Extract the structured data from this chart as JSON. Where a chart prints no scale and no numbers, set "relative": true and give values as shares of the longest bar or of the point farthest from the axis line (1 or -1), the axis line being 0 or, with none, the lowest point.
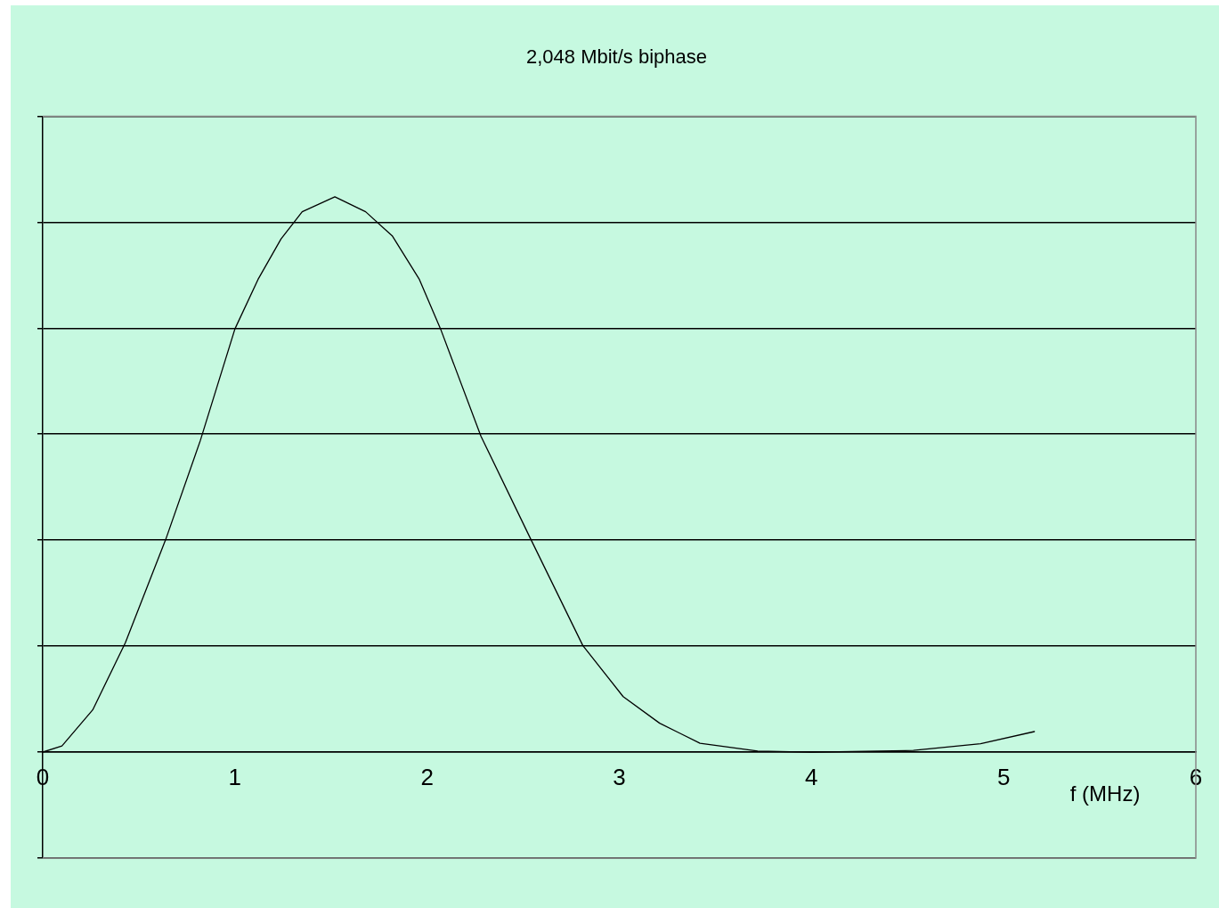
{
  "chart_data": {
    "type": "line",
    "title": "2,048 Mbit/s biphase",
    "xlabel": "f (MHz)",
    "relative": true,
    "grid": "y",
    "marker": "none",
    "line_style": "solid",
    "legend": false,
    "xlim": [
      0,
      6
    ],
    "xticks": [
      0,
      1,
      2,
      3,
      4,
      5,
      6
    ],
    "series": [
      {
        "color": "#000000",
        "x": [
          0,
          0.1,
          0.26,
          0.43,
          0.64,
          0.82,
          1.0,
          1.12,
          1.24,
          1.35,
          1.52,
          1.68,
          1.82,
          1.96,
          2.07,
          2.28,
          2.54,
          2.81,
          3.02,
          3.21,
          3.42,
          3.72,
          4.0,
          4.53,
          4.88,
          5.16
        ],
        "values": [
          0,
          0.011,
          0.076,
          0.197,
          0.383,
          0.561,
          0.762,
          0.851,
          0.924,
          0.973,
          1.0,
          0.973,
          0.929,
          0.851,
          0.762,
          0.569,
          0.383,
          0.192,
          0.1,
          0.052,
          0.016,
          0.002,
          0,
          0.003,
          0.015,
          0.037
        ]
      }
    ]
  }
}
